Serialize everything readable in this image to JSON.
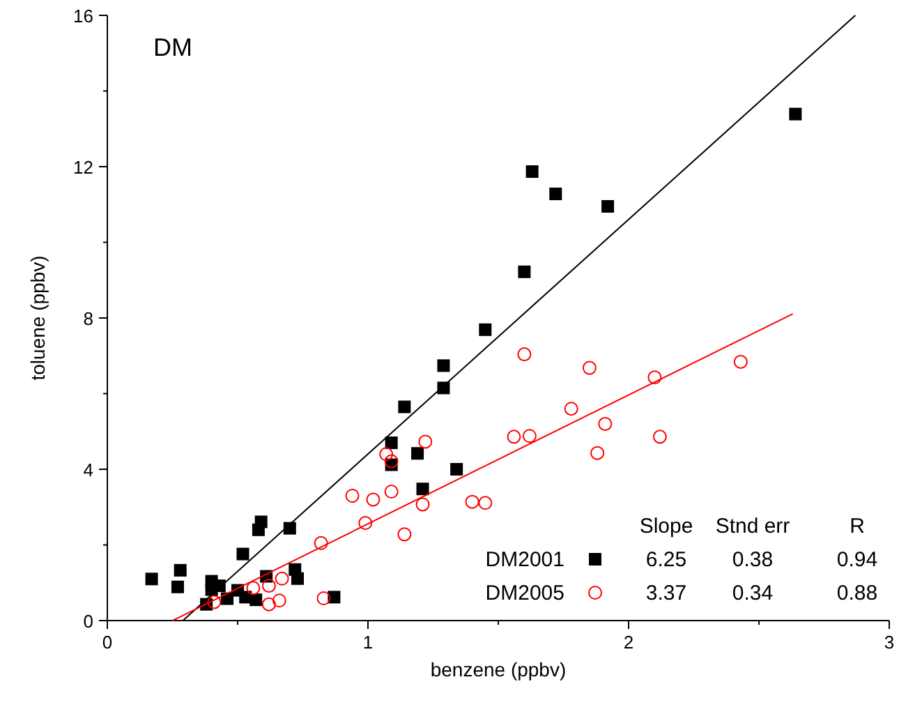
{
  "chart_data": {
    "type": "scatter",
    "title": "DM",
    "xlabel": "benzene (ppbv)",
    "ylabel": "toluene (ppbv)",
    "xlim": [
      0,
      3
    ],
    "ylim": [
      0,
      16
    ],
    "xticks": [
      0,
      {
        "value": 0.5,
        "label": null
      },
      1,
      {
        "value": 1.5,
        "label": null
      },
      2,
      {
        "value": 2.5,
        "label": null
      },
      3
    ],
    "yticks": [
      0,
      {
        "value": 2,
        "label": null
      },
      4,
      {
        "value": 6,
        "label": null
      },
      8,
      {
        "value": 10,
        "label": null
      },
      12,
      {
        "value": 14,
        "label": null
      },
      16
    ],
    "grid": false,
    "legend": "bottom right",
    "series": [
      {
        "name": "DM2001",
        "color": "#000000",
        "marker": "square",
        "x": [
          0.17,
          0.28,
          0.27,
          0.38,
          0.4,
          0.4,
          0.43,
          0.46,
          0.5,
          0.53,
          0.57,
          0.52,
          0.58,
          0.59,
          0.61,
          0.7,
          0.72,
          0.73,
          0.87,
          1.63,
          1.72,
          1.92,
          1.6,
          1.45,
          1.29,
          1.29,
          1.14,
          1.09,
          1.19,
          1.34,
          1.09,
          1.21,
          2.64
        ],
        "values": [
          1.1,
          1.33,
          0.89,
          0.43,
          1.04,
          0.82,
          0.92,
          0.58,
          0.8,
          0.62,
          0.55,
          1.76,
          2.4,
          2.61,
          1.17,
          2.44,
          1.35,
          1.11,
          0.62,
          11.87,
          11.28,
          10.95,
          9.22,
          7.69,
          6.74,
          6.15,
          5.65,
          4.7,
          4.42,
          4.0,
          4.12,
          3.48,
          13.39
        ]
      },
      {
        "name": "DM2005",
        "color": "#ff0000",
        "marker": "circle",
        "x": [
          0.41,
          0.56,
          0.62,
          0.62,
          0.66,
          0.67,
          0.83,
          0.82,
          0.94,
          1.02,
          0.99,
          1.09,
          1.14,
          1.21,
          1.4,
          1.45,
          1.88,
          1.07,
          1.09,
          1.22,
          1.6,
          1.85,
          1.78,
          1.91,
          2.1,
          2.43,
          2.12,
          1.56,
          1.62
        ],
        "values": [
          0.49,
          0.86,
          0.92,
          0.43,
          0.53,
          1.11,
          0.59,
          2.05,
          3.3,
          3.2,
          2.58,
          3.41,
          2.28,
          3.07,
          3.14,
          3.11,
          4.43,
          4.4,
          4.21,
          4.73,
          7.04,
          6.68,
          5.6,
          5.2,
          6.43,
          6.84,
          4.86,
          4.86,
          4.88
        ]
      },
      {
        "type": "line",
        "color": "#000000",
        "x": [
          0.29,
          2.87
        ],
        "values": [
          0,
          16
        ]
      },
      {
        "type": "line",
        "color": "#ff0000",
        "x": [
          0.25,
          2.63
        ],
        "values": [
          0,
          8.11
        ]
      }
    ],
    "annotations": [
      "Slope",
      "Stnd err",
      "R",
      "6.25",
      "0.38",
      "0.94",
      "3.37",
      "0.34",
      "0.88"
    ]
  }
}
